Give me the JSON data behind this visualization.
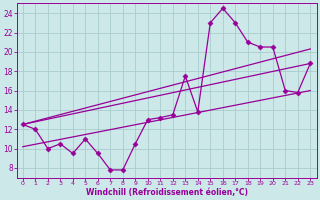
{
  "x": [
    0,
    1,
    2,
    3,
    4,
    5,
    6,
    7,
    8,
    9,
    10,
    11,
    12,
    13,
    14,
    15,
    16,
    17,
    18,
    19,
    20,
    21,
    22,
    23
  ],
  "y_data": [
    12.5,
    12.0,
    10.0,
    10.5,
    9.5,
    11.0,
    9.5,
    7.8,
    7.8,
    10.5,
    13.0,
    13.2,
    13.5,
    17.5,
    13.8,
    23.0,
    24.5,
    23.0,
    21.0,
    20.5,
    20.5,
    16.0,
    15.8,
    18.8
  ],
  "trend1_x": [
    0,
    23
  ],
  "trend1_y": [
    12.5,
    20.3
  ],
  "trend2_x": [
    0,
    23
  ],
  "trend2_y": [
    12.5,
    18.8
  ],
  "trend3_x": [
    0,
    23
  ],
  "trend3_y": [
    10.2,
    16.0
  ],
  "line_color": "#990099",
  "bg_color": "#cce8e8",
  "grid_color": "#aacccc",
  "xlabel": "Windchill (Refroidissement éolien,°C)",
  "xlim": [
    -0.5,
    23.5
  ],
  "ylim": [
    7.0,
    25.0
  ],
  "xticks": [
    0,
    1,
    2,
    3,
    4,
    5,
    6,
    7,
    8,
    9,
    10,
    11,
    12,
    13,
    14,
    15,
    16,
    17,
    18,
    19,
    20,
    21,
    22,
    23
  ],
  "yticks": [
    8,
    10,
    12,
    14,
    16,
    18,
    20,
    22,
    24
  ]
}
